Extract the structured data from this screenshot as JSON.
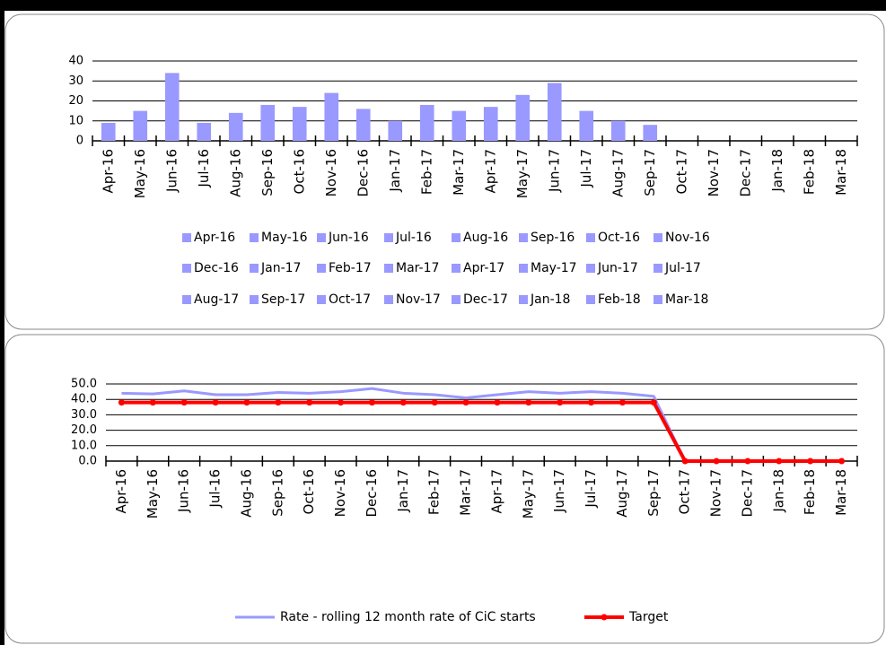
{
  "chart_data": [
    {
      "type": "bar",
      "categories": [
        "Apr-16",
        "May-16",
        "Jun-16",
        "Jul-16",
        "Aug-16",
        "Sep-16",
        "Oct-16",
        "Nov-16",
        "Dec-16",
        "Jan-17",
        "Feb-17",
        "Mar-17",
        "Apr-17",
        "May-17",
        "Jun-17",
        "Jul-17",
        "Aug-17",
        "Sep-17",
        "Oct-17",
        "Nov-17",
        "Dec-17",
        "Jan-18",
        "Feb-18",
        "Mar-18"
      ],
      "values": [
        9,
        15,
        34,
        9,
        14,
        18,
        17,
        24,
        16,
        10,
        18,
        15,
        17,
        23,
        29,
        15,
        10,
        8,
        null,
        null,
        null,
        null,
        null,
        null
      ],
      "color": "#9999ff",
      "ylim": [
        0,
        40
      ],
      "yticks": [
        0,
        10,
        20,
        30,
        40
      ],
      "grid": true,
      "legend": "bottom"
    },
    {
      "type": "line",
      "categories": [
        "Apr-16",
        "May-16",
        "Jun-16",
        "Jul-16",
        "Aug-16",
        "Sep-16",
        "Oct-16",
        "Nov-16",
        "Dec-16",
        "Jan-17",
        "Feb-17",
        "Mar-17",
        "Apr-17",
        "May-17",
        "Jun-17",
        "Jul-17",
        "Aug-17",
        "Sep-17",
        "Oct-17",
        "Nov-17",
        "Dec-17",
        "Jan-18",
        "Feb-18",
        "Mar-18"
      ],
      "series": [
        {
          "name": "Rate - rolling 12 month rate of CiC starts",
          "color": "#9999ff",
          "values": [
            44,
            43.5,
            45.5,
            43,
            43,
            44.5,
            44,
            45,
            47,
            44,
            43,
            41,
            43,
            45,
            44,
            45,
            44,
            42,
            0,
            0,
            0,
            0,
            0,
            0
          ]
        },
        {
          "name": "Target",
          "color": "#ff0000",
          "marker": "circle",
          "values": [
            38,
            38,
            38,
            38,
            38,
            38,
            38,
            38,
            38,
            38,
            38,
            38,
            38,
            38,
            38,
            38,
            38,
            38,
            0,
            0,
            0,
            0,
            0,
            0
          ]
        }
      ],
      "ylim": [
        0,
        50
      ],
      "yticks": [
        {
          "value": 0,
          "label": "0.0"
        },
        {
          "value": 10,
          "label": "10.0"
        },
        {
          "value": 20,
          "label": "20.0"
        },
        {
          "value": 30,
          "label": "30.0"
        },
        {
          "value": 40,
          "label": "40.0"
        },
        {
          "value": 50,
          "label": "50.0"
        }
      ],
      "grid": true,
      "legend": "bottom"
    }
  ]
}
